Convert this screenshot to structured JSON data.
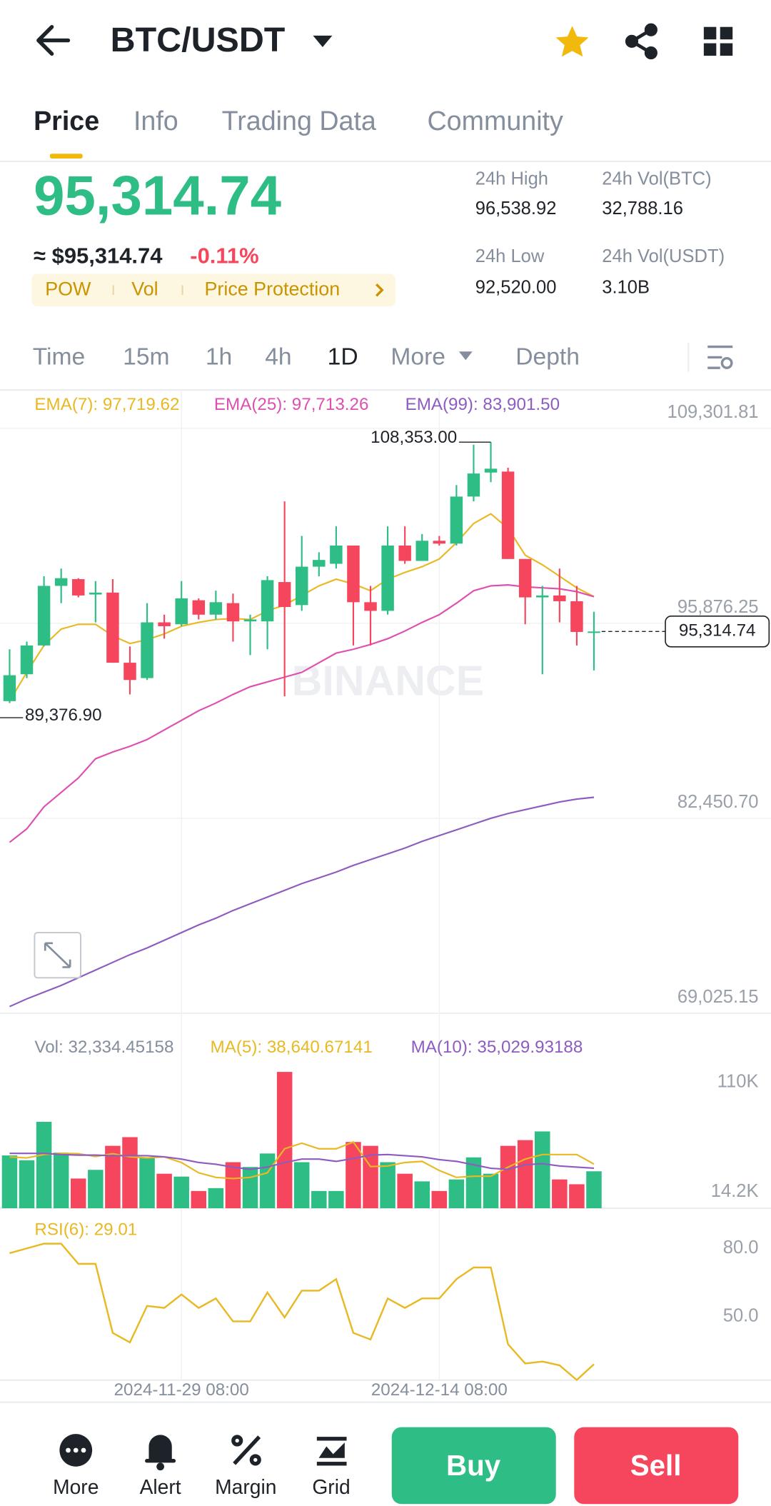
{
  "header": {
    "title": "BTC/USDT"
  },
  "tabs": [
    "Price",
    "Info",
    "Trading Data",
    "Community"
  ],
  "ticker": {
    "price": "95,314.74",
    "approx": "≈ $95,314.74",
    "change": "-0.11%",
    "tags": [
      "POW",
      "Vol",
      "Price Protection"
    ],
    "stats": [
      {
        "label": "24h High",
        "value": "96,538.92"
      },
      {
        "label": "24h Vol(BTC)",
        "value": "32,788.16"
      },
      {
        "label": "24h Low",
        "value": "92,520.00"
      },
      {
        "label": "24h Vol(USDT)",
        "value": "3.10B"
      }
    ]
  },
  "intervals": [
    "Time",
    "15m",
    "1h",
    "4h",
    "1D",
    "More",
    "Depth"
  ],
  "chart_data": {
    "type": "candlestick",
    "watermark": "BINANCE",
    "categories": [
      null,
      null,
      null,
      null,
      null,
      null,
      null,
      null,
      null,
      null,
      "2024-11-29 08:00",
      null,
      null,
      null,
      null,
      null,
      null,
      null,
      null,
      null,
      null,
      null,
      null,
      null,
      null,
      "2024-12-14 08:00",
      null,
      null,
      null,
      null,
      null,
      null,
      null,
      null,
      null
    ],
    "up_color": "#2ebd85",
    "down_color": "#f6465d",
    "open": [
      90520,
      92370,
      94354,
      98456,
      98919,
      97861,
      97993,
      93164,
      92106,
      95944,
      95811,
      97464,
      96473,
      97266,
      96010,
      96010,
      98720,
      97134,
      99778,
      99977,
      101233,
      97332,
      96737,
      101233,
      100175,
      101563,
      101365,
      104606,
      106260,
      106326,
      100307,
      97663,
      97795,
      97398,
      95282
    ],
    "high": [
      94090,
      94621,
      99117,
      99646,
      98985,
      98786,
      98919,
      94288,
      97266,
      96473,
      98786,
      97597,
      98125,
      97927,
      96473,
      99117,
      104275,
      101894,
      100770,
      102555,
      101233,
      98456,
      102555,
      102555,
      102026,
      101894,
      105400,
      108177,
      108353,
      106590,
      100307,
      98456,
      99646,
      98456,
      96671
    ],
    "low": [
      90387,
      92106,
      94288,
      97266,
      97663,
      95944,
      93164,
      90982,
      91974,
      94819,
      95679,
      96142,
      96142,
      94621,
      93693,
      94090,
      90850,
      96737,
      99117,
      99646,
      94354,
      94354,
      96473,
      99977,
      100175,
      101233,
      101233,
      104275,
      105598,
      100307,
      95811,
      92370,
      95944,
      94354,
      92635
    ],
    "close": [
      92304,
      94354,
      98456,
      98985,
      97795,
      97993,
      93164,
      91974,
      95944,
      95679,
      97597,
      96473,
      97332,
      96010,
      96142,
      98852,
      97002,
      99778,
      100241,
      101233,
      97332,
      96737,
      101233,
      100175,
      101563,
      101365,
      104606,
      106193,
      106524,
      100307,
      97663,
      97795,
      97398,
      95282,
      95314.74
    ],
    "ylim": [
      69025.15,
      111880
    ],
    "yticks": [
      {
        "value": 109301.81,
        "label": "109,301.81"
      },
      {
        "value": 95876.25,
        "label": "95,876.25"
      },
      {
        "value": 82450.7,
        "label": "82,450.70"
      },
      {
        "value": 69025.15,
        "label": "69,025.15"
      }
    ],
    "grid": true,
    "ema": [
      {
        "name": "EMA(7): 97,719.62",
        "color": "#e8b923",
        "values": [
          90520,
          92502,
          94354,
          95478,
          95811,
          95811,
          95015,
          94486,
          94751,
          95148,
          95679,
          95944,
          96142,
          96208,
          96142,
          96737,
          97134,
          97795,
          98456,
          98919,
          98588,
          98125,
          98919,
          99382,
          99778,
          100307,
          101431,
          102754,
          103415,
          102423,
          100571,
          99910,
          99117,
          98324,
          97719.62
        ]
      },
      {
        "name": "EMA(25): 97,713.26",
        "color": "#dd4fb0",
        "values": [
          80796,
          81722,
          83243,
          84235,
          85227,
          86550,
          87013,
          87409,
          87872,
          88534,
          89195,
          89856,
          90385,
          90980,
          91510,
          91840,
          92171,
          92502,
          93163,
          93825,
          94089,
          94420,
          94817,
          95346,
          95941,
          96470,
          97264,
          98124,
          98455,
          98521,
          98389,
          98323,
          98257,
          98059,
          97713.26
        ]
      },
      {
        "name": "EMA(99): 83,901.50",
        "color": "#8e5cc0",
        "values": [
          69486,
          70015,
          70478,
          70940,
          71470,
          71999,
          72528,
          73057,
          73520,
          74049,
          74578,
          75107,
          75570,
          76099,
          76562,
          77025,
          77488,
          77951,
          78348,
          78745,
          79208,
          79605,
          80001,
          80398,
          80861,
          81258,
          81655,
          82052,
          82449,
          82780,
          83044,
          83309,
          83573,
          83771,
          83901.5
        ]
      }
    ],
    "annotations": [
      {
        "value": 108353,
        "label": "108,353.00"
      },
      {
        "value": 89376.9,
        "label": "89,376.90"
      }
    ],
    "last_price": {
      "value": 95314.74,
      "label": "95,314.74"
    },
    "volume": {
      "name": "Vol: 32,334.45158",
      "values": [
        46200,
        42000,
        75600,
        48700,
        26000,
        33600,
        54600,
        62200,
        44500,
        30200,
        27700,
        15100,
        17600,
        40300,
        36100,
        47900,
        119300,
        40300,
        15100,
        15100,
        58000,
        54600,
        40300,
        30200,
        23500,
        15100,
        25200,
        44500,
        30200,
        54600,
        59600,
        67200,
        25200,
        21000,
        32334.45158
      ],
      "ylim": [
        0,
        153800
      ],
      "yticks": [
        {
          "value": 110000,
          "label": "110K"
        },
        {
          "value": 14200,
          "label": "14.2K"
        }
      ],
      "ma": [
        {
          "name": "MA(5): 38,640.67141",
          "color": "#e8b923",
          "values": [
            45000,
            44000,
            47000,
            48000,
            47700,
            45200,
            47700,
            45000,
            44000,
            45000,
            40000,
            31000,
            27000,
            26000,
            27000,
            31000,
            52000,
            57000,
            52000,
            52000,
            58000,
            36500,
            37000,
            40000,
            41000,
            33000,
            27000,
            28000,
            28000,
            36000,
            43000,
            47000,
            47000,
            47000,
            38640.67141
          ]
        },
        {
          "name": "MA(10): 35,029.93188",
          "color": "#8e5cc0",
          "values": [
            48000,
            48000,
            48000,
            47000,
            46500,
            46500,
            46000,
            46000,
            46000,
            45000,
            43000,
            40000,
            38500,
            36000,
            34000,
            36000,
            40000,
            43000,
            43000,
            41000,
            43500,
            46500,
            47000,
            46000,
            45000,
            42500,
            41000,
            38000,
            35000,
            34000,
            38000,
            39000,
            37000,
            36000,
            35029.93188
          ]
        }
      ]
    },
    "rsi": {
      "name": "RSI(6): 29.01",
      "color": "#e8b923",
      "values": [
        77.9,
        80.0,
        82.1,
        82.1,
        73.2,
        73.2,
        42.8,
        38.6,
        54.7,
        53.8,
        59.7,
        53.8,
        58.0,
        47.9,
        47.9,
        60.6,
        49.6,
        61.4,
        61.4,
        66.5,
        42.8,
        39.9,
        58.0,
        53.8,
        58.0,
        58.0,
        66.5,
        71.6,
        71.6,
        37.8,
        29.3,
        30.2,
        28.5,
        22.1,
        29.01
      ],
      "ylim": [
        22,
        96
      ],
      "yticks": [
        {
          "value": 80,
          "label": "80.0"
        },
        {
          "value": 50,
          "label": "50.0"
        }
      ]
    }
  },
  "bottom_bar": {
    "actions": [
      "More",
      "Alert",
      "Margin",
      "Grid"
    ],
    "buy": "Buy",
    "sell": "Sell"
  }
}
